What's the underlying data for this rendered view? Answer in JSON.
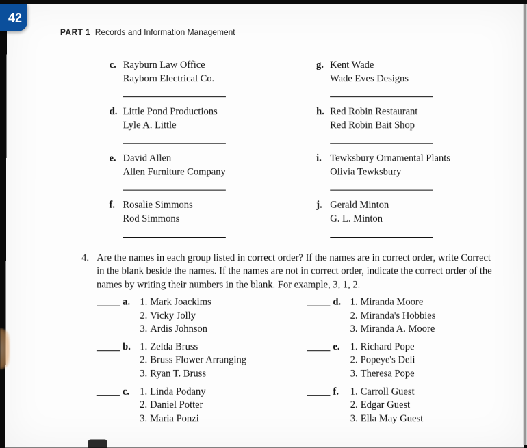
{
  "tab_number": "42",
  "running_head": {
    "part": "PART 1",
    "title": "Records and Information Management"
  },
  "pairs_left": [
    {
      "letter": "c.",
      "line1": "Rayburn Law Office",
      "line2": "Rayborn Electrical Co."
    },
    {
      "letter": "d.",
      "line1": "Little Pond Productions",
      "line2": "Lyle A. Little"
    },
    {
      "letter": "e.",
      "line1": "David Allen",
      "line2": "Allen Furniture Company"
    },
    {
      "letter": "f.",
      "line1": "Rosalie Simmons",
      "line2": "Rod Simmons"
    }
  ],
  "pairs_right": [
    {
      "letter": "g.",
      "line1": "Kent Wade",
      "line2": "Wade Eves Designs"
    },
    {
      "letter": "h.",
      "line1": "Red Robin Restaurant",
      "line2": "Red Robin Bait Shop"
    },
    {
      "letter": "i.",
      "line1": "Tewksbury Ornamental Plants",
      "line2": "Olivia Tewksbury"
    },
    {
      "letter": "j.",
      "line1": "Gerald Minton",
      "line2": "G. L. Minton"
    }
  ],
  "q4": {
    "num": "4.",
    "text": "Are the names in each group listed in correct order? If the names are in correct order, write Correct in the blank beside the names. If the names are not in correct order, indicate the correct order of the names by writing their numbers in the blank. For example, 3, 1, 2."
  },
  "groups_left": [
    {
      "letter": "a.",
      "items": [
        "Mark Joackims",
        "Vicky Jolly",
        "Ardis Johnson"
      ]
    },
    {
      "letter": "b.",
      "items": [
        "Zelda Bruss",
        "Bruss Flower Arranging",
        "Ryan T. Bruss"
      ]
    },
    {
      "letter": "c.",
      "items": [
        "Linda Podany",
        "Daniel Potter",
        "Maria Ponzi"
      ]
    }
  ],
  "groups_right": [
    {
      "letter": "d.",
      "items": [
        "Miranda Moore",
        "Miranda's Hobbies",
        "Miranda A. Moore"
      ]
    },
    {
      "letter": "e.",
      "items": [
        "Richard Pope",
        "Popeye's Deli",
        "Theresa Pope"
      ]
    },
    {
      "letter": "f.",
      "items": [
        "Carroll Guest",
        "Edgar Guest",
        "Ella May Guest"
      ]
    }
  ]
}
